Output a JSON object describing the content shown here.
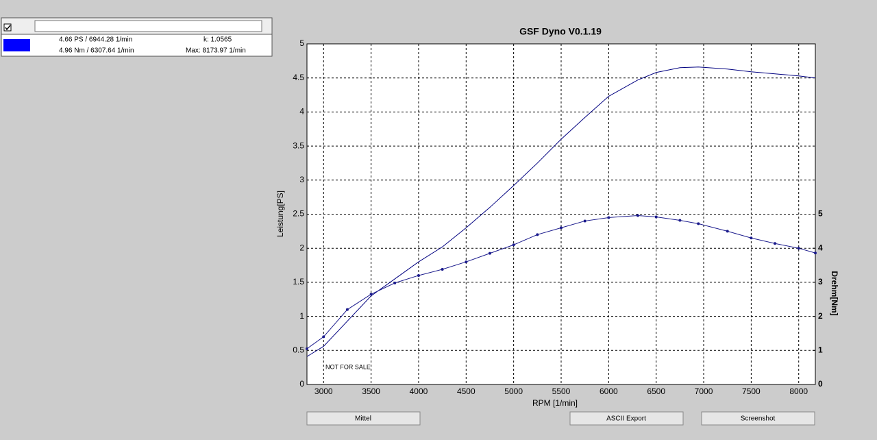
{
  "panel": {
    "line1": "4.66 PS / 6944.28 1/min",
    "k": "k: 1.0565",
    "line2": "4.96 Nm / 6307.64 1/min",
    "max": "Max: 8173.97 1/min",
    "swatch_color": "#0000ff"
  },
  "buttons": [
    "Mittel",
    "ASCII Export",
    "Screenshot"
  ],
  "chart_data": {
    "type": "line",
    "title": "GSF Dyno V0.1.19",
    "x_label": "RPM [1/min]",
    "y_label": "Leistung[PS]",
    "y2_label": "Drehm[Nm]",
    "annotation": "NOT FOR SALE",
    "x": [
      2825,
      3000,
      3250,
      3500,
      3750,
      4000,
      4250,
      4500,
      4750,
      5000,
      5250,
      5500,
      5750,
      6000,
      6307,
      6500,
      6750,
      6944,
      7250,
      7500,
      7750,
      8000,
      8175
    ],
    "series": [
      {
        "name": "Leistung",
        "color": "#000080",
        "markers": false,
        "values": [
          0.41,
          0.56,
          0.93,
          1.3,
          1.55,
          1.8,
          2.02,
          2.3,
          2.6,
          2.92,
          3.25,
          3.6,
          3.92,
          4.23,
          4.47,
          4.58,
          4.65,
          4.66,
          4.63,
          4.59,
          4.56,
          4.53,
          4.5
        ]
      },
      {
        "name": "Drehmoment",
        "color": "#1a1a8c",
        "markers": true,
        "axis": "y2",
        "values": [
          1.05,
          1.4,
          2.2,
          2.65,
          2.98,
          3.2,
          3.38,
          3.6,
          3.85,
          4.1,
          4.4,
          4.6,
          4.8,
          4.9,
          4.96,
          4.92,
          4.82,
          4.72,
          4.5,
          4.3,
          4.14,
          4.0,
          3.86
        ]
      }
    ],
    "xlim": [
      2825,
      8175
    ],
    "xticks": [
      3000,
      3500,
      4000,
      4500,
      5000,
      5500,
      6000,
      6500,
      7000,
      7500,
      8000
    ],
    "ylim": [
      0,
      5
    ],
    "yticks": [
      0,
      0.5,
      1,
      1.5,
      2,
      2.5,
      3,
      3.5,
      4,
      4.5,
      5
    ],
    "y2lim": [
      0,
      10
    ],
    "y2ticks": [
      0,
      1,
      2,
      3,
      4,
      5
    ],
    "grid": true
  }
}
